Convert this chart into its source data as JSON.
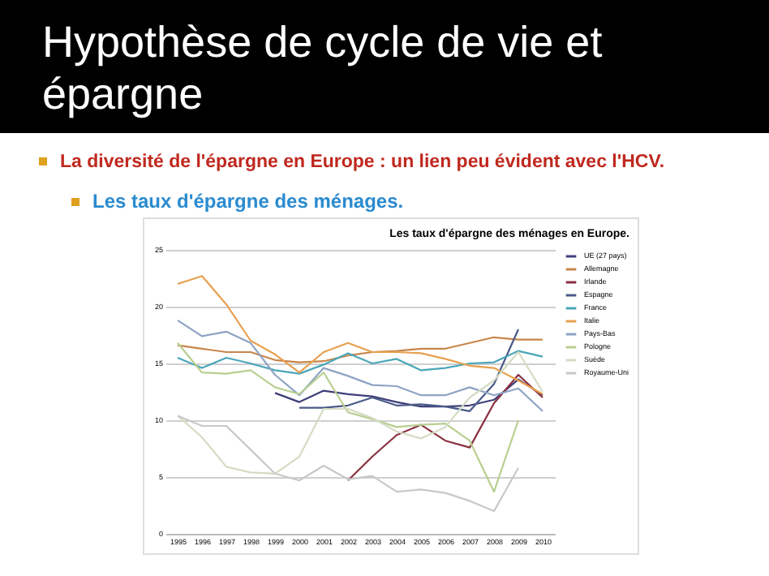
{
  "chart_data": {
    "type": "line",
    "title": "Les taux d'épargne des ménages en Europe.",
    "annotations": [
      "Hypothèse de cycle de vie et épargne",
      "La diversité de l'épargne en Europe : un lien peu évident avec l'HCV.",
      "Les taux d'épargne des ménages."
    ],
    "categories": [
      "1995",
      "1996",
      "1997",
      "1998",
      "1999",
      "2000",
      "2001",
      "2002",
      "2003",
      "2004",
      "2005",
      "2006",
      "2007",
      "2008",
      "2009",
      "2010"
    ],
    "ylim": [
      0,
      25
    ],
    "yticks": [
      0,
      5,
      10,
      15,
      20,
      25
    ],
    "grid": "y",
    "legend": "right",
    "marker": "none",
    "series": [
      {
        "name": "UE (27 pays)",
        "color": "#3f3f7a",
        "values": [
          null,
          null,
          null,
          null,
          12.4,
          11.6,
          12.6,
          12.3,
          12.1,
          11.6,
          11.2,
          11.2,
          11.3,
          11.8,
          13.6,
          12.2
        ]
      },
      {
        "name": "Allemagne",
        "color": "#c8864a",
        "values": [
          16.6,
          16.3,
          16.0,
          16.0,
          15.3,
          15.1,
          15.2,
          15.7,
          16.0,
          16.1,
          16.3,
          16.3,
          16.8,
          17.3,
          17.1,
          17.1
        ]
      },
      {
        "name": "Irlande",
        "color": "#8a3040",
        "values": [
          null,
          null,
          null,
          null,
          null,
          null,
          null,
          4.7,
          6.8,
          8.7,
          9.6,
          8.2,
          7.6,
          11.5,
          14.0,
          12.0
        ]
      },
      {
        "name": "Espagne",
        "color": "#4a5a8a",
        "values": [
          null,
          null,
          null,
          null,
          null,
          11.1,
          11.1,
          11.3,
          12.0,
          11.3,
          11.4,
          11.2,
          10.8,
          13.2,
          18.0,
          null
        ]
      },
      {
        "name": "France",
        "color": "#4aa6b8",
        "values": [
          15.5,
          14.6,
          15.5,
          15.0,
          14.4,
          14.1,
          14.9,
          15.9,
          15.0,
          15.4,
          14.4,
          14.6,
          15.0,
          15.1,
          16.1,
          15.6
        ]
      },
      {
        "name": "Italie",
        "color": "#e8a050",
        "values": [
          22.0,
          22.7,
          20.2,
          17.0,
          15.8,
          14.2,
          16.0,
          16.8,
          16.0,
          16.0,
          15.9,
          15.4,
          14.8,
          14.6,
          13.5,
          12.3
        ]
      },
      {
        "name": "Pays-Bas",
        "color": "#8ea3c4",
        "values": [
          18.8,
          17.4,
          17.8,
          16.8,
          14.0,
          12.2,
          14.6,
          13.9,
          13.1,
          13.0,
          12.2,
          12.2,
          12.9,
          12.2,
          12.8,
          10.8
        ]
      },
      {
        "name": "Pologne",
        "color": "#b8cf90",
        "values": [
          16.8,
          14.2,
          14.1,
          14.4,
          12.9,
          12.3,
          14.2,
          10.7,
          10.1,
          9.4,
          9.6,
          9.7,
          8.2,
          3.7,
          10.0,
          null
        ]
      },
      {
        "name": "Suède",
        "color": "#d4dcc4",
        "values": [
          10.4,
          8.5,
          5.9,
          5.4,
          5.3,
          6.8,
          11.0,
          11.0,
          10.2,
          9.0,
          8.4,
          9.4,
          12.0,
          13.5,
          16.0,
          12.5
        ]
      },
      {
        "name": "Royaume-Uni",
        "color": "#c8c8c8",
        "values": [
          10.4,
          9.5,
          9.5,
          7.4,
          5.3,
          4.7,
          6.0,
          4.8,
          5.1,
          3.7,
          3.9,
          3.6,
          2.9,
          2.0,
          5.8,
          null
        ]
      }
    ]
  }
}
